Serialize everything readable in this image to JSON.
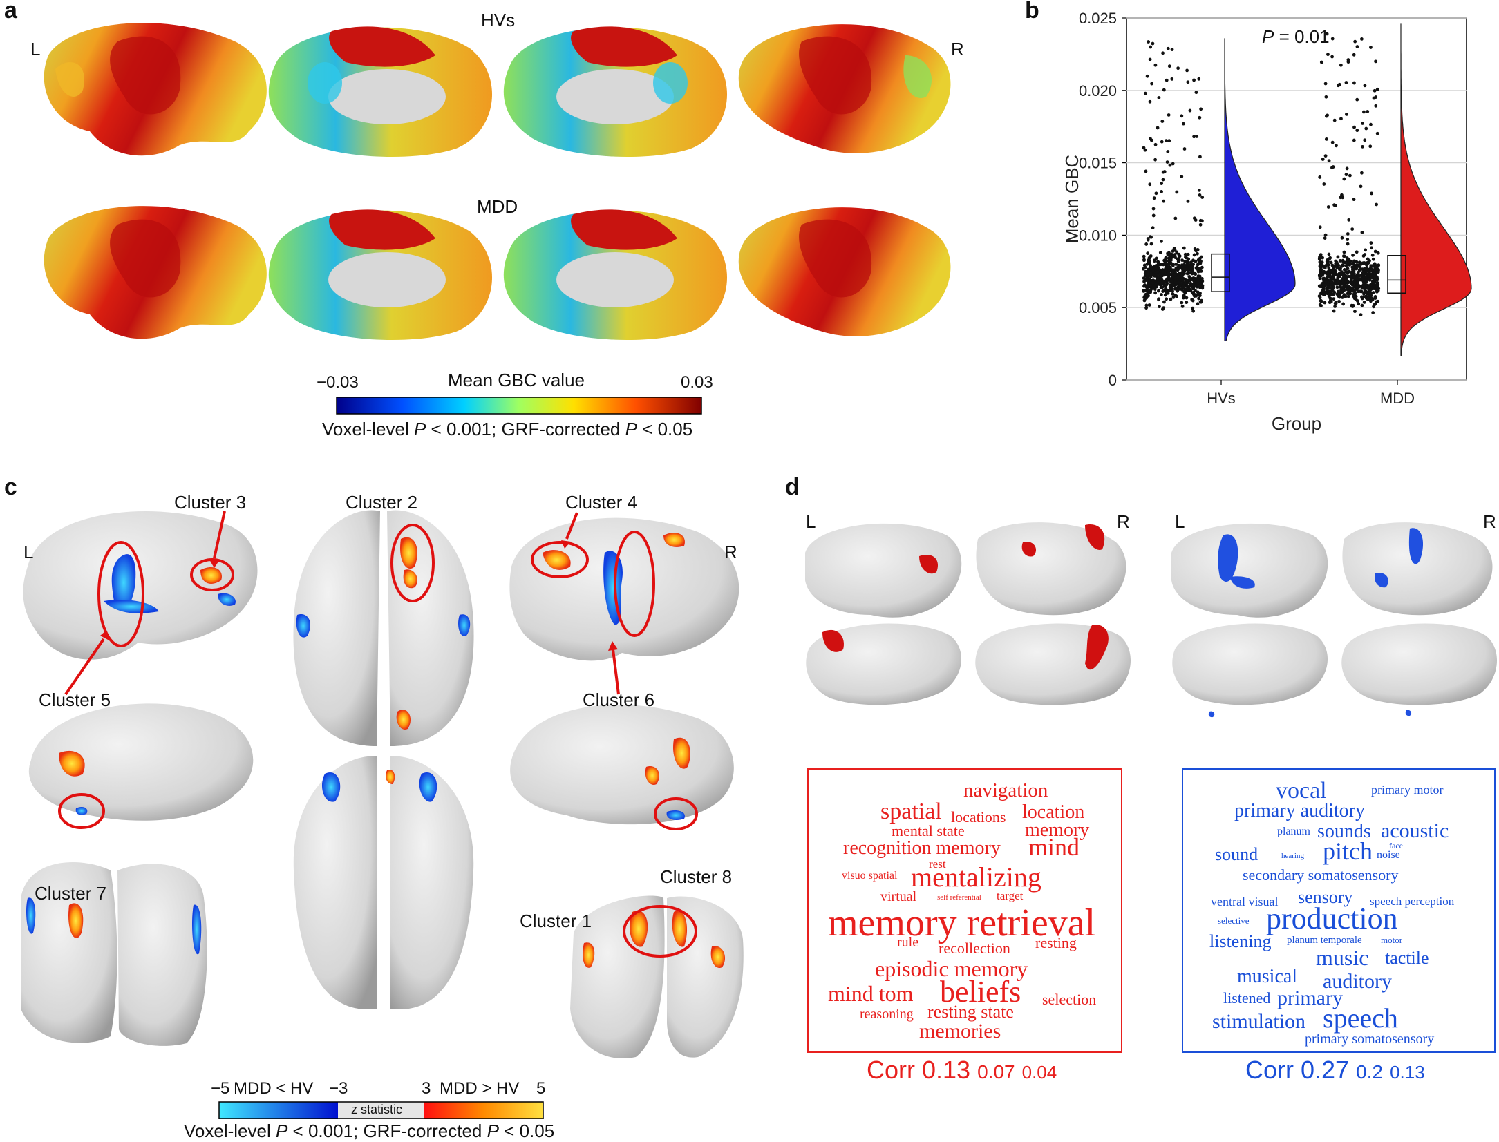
{
  "panel_labels": {
    "a": "a",
    "b": "b",
    "c": "c",
    "d": "d"
  },
  "panel_a": {
    "hemi_left": "L",
    "hemi_right": "R",
    "row1_title": "HVs",
    "row2_title": "MDD",
    "colorbar": {
      "title": "Mean GBC value",
      "min": "−0.03",
      "max": "0.03",
      "note_prefix": "Voxel-level ",
      "note_p1": "P",
      "note_mid": " < 0.001; GRF-corrected ",
      "note_p2": "P",
      "note_suffix": " < 0.05"
    }
  },
  "panel_b": {
    "annotation_italic": "P",
    "annotation_rest": " = 0.01",
    "chart_data": {
      "type": "raincloud",
      "ylabel": "Mean GBC",
      "xlabel": "Group",
      "ylim": [
        0,
        0.025
      ],
      "yticks": [
        "0",
        "0.005",
        "0.010",
        "0.015",
        "0.020",
        "0.025"
      ],
      "ytick_values": [
        0,
        0.005,
        0.01,
        0.015,
        0.02,
        0.025
      ],
      "categories": [
        "HVs",
        "MDD"
      ],
      "series": [
        {
          "name": "HVs",
          "color": "#1f1fd6",
          "min": 0.0027,
          "q1": 0.0061,
          "median": 0.0071,
          "q3": 0.0087,
          "max": 0.0236,
          "mode": 0.0066
        },
        {
          "name": "MDD",
          "color": "#dd1c1c",
          "min": 0.0017,
          "q1": 0.006,
          "median": 0.0069,
          "q3": 0.0086,
          "max": 0.0246,
          "mode": 0.0063
        }
      ],
      "grid": true
    }
  },
  "panel_c": {
    "clusters": [
      "Cluster 1",
      "Cluster 2",
      "Cluster 3",
      "Cluster 4",
      "Cluster 5",
      "Cluster 6",
      "Cluster 7",
      "Cluster 8"
    ],
    "hemi_left": "L",
    "hemi_right": "R",
    "colorbar": {
      "neg_min": "−5",
      "neg_label": "MDD < HV",
      "neg_max": "−3",
      "pos_min": "3",
      "pos_label": "MDD > HV",
      "pos_max": "5",
      "center": "z statistic",
      "note_prefix": "Voxel-level ",
      "note_p1": "P",
      "note_mid": " < 0.001; GRF-corrected ",
      "note_p2": "P",
      "note_suffix": " < 0.05"
    }
  },
  "panel_d": {
    "hemi_left": "L",
    "hemi_right": "R",
    "red_words": [
      "navigation",
      "spatial",
      "location",
      "locations",
      "memory",
      "mental state",
      "recognition memory",
      "mind",
      "rest",
      "visuo spatial",
      "mentalizing",
      "virtual",
      "self referential",
      "target",
      "memory retrieval",
      "rule",
      "recollection",
      "resting",
      "episodic memory",
      "mind tom",
      "beliefs",
      "selection",
      "reasoning",
      "resting state",
      "memories"
    ],
    "blue_words": [
      "vocal",
      "primary motor",
      "primary auditory",
      "planum",
      "sounds",
      "acoustic",
      "face",
      "sound",
      "hearing",
      "pitch",
      "noise",
      "secondary somatosensory",
      "ventral visual",
      "sensory",
      "speech perception",
      "selective",
      "production",
      "listening",
      "planum temporale",
      "motor",
      "music",
      "tactile",
      "musical",
      "auditory",
      "listened",
      "primary",
      "stimulation",
      "speech",
      "primary somatosensory"
    ],
    "red_corr": {
      "label": "Corr",
      "v1": "0.13",
      "v2": "0.07",
      "v3": "0.04"
    },
    "blue_corr": {
      "label": "Corr",
      "v1": "0.27",
      "v2": "0.2",
      "v3": "0.13"
    },
    "red_color": "#e8201e",
    "blue_color": "#1a4fd8"
  }
}
